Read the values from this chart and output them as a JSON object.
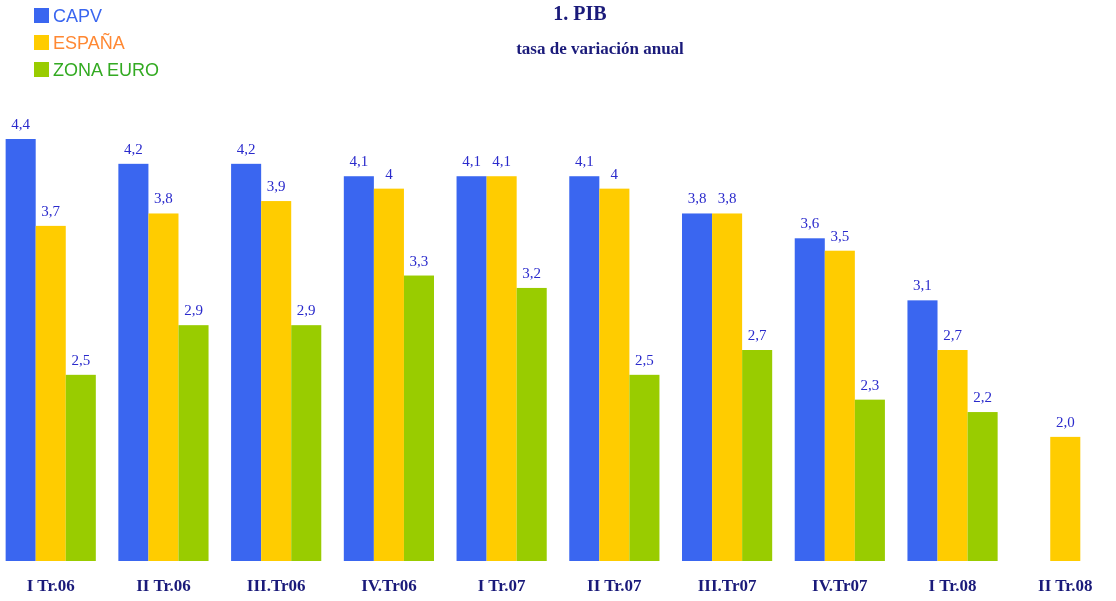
{
  "chart_data": {
    "type": "bar",
    "title": "1. PIB",
    "subtitle": "tasa de variación anual",
    "categories": [
      "I Tr.06",
      "II Tr.06",
      "III.Tr06",
      "IV.Tr06",
      "I Tr.07",
      "II Tr.07",
      "III.Tr07",
      "IV.Tr07",
      "I Tr.08",
      "II Tr.08"
    ],
    "series": [
      {
        "name": "CAPV",
        "color": "#3a66f0",
        "values": [
          4.4,
          4.2,
          4.2,
          4.1,
          4.1,
          4.1,
          3.8,
          3.6,
          3.1,
          null
        ],
        "value_labels": [
          "4,4",
          "4,2",
          "4,2",
          "4,1",
          "4,1",
          "4,1",
          "3,8",
          "3,6",
          "3,1",
          null
        ]
      },
      {
        "name": "ESPAÑA",
        "color": "#ffcc00",
        "values": [
          3.7,
          3.8,
          3.9,
          4,
          4.1,
          4,
          3.8,
          3.5,
          2.7,
          2.0
        ],
        "value_labels": [
          "3,7",
          "3,8",
          "3,9",
          "4",
          "4,1",
          "4",
          "3,8",
          "3,5",
          "2,7",
          "2,0"
        ]
      },
      {
        "name": "ZONA EURO",
        "color": "#99cc00",
        "values": [
          2.5,
          2.9,
          2.9,
          3.3,
          3.2,
          2.5,
          2.7,
          2.3,
          2.2,
          null
        ],
        "value_labels": [
          "2,5",
          "2,9",
          "2,9",
          "3,3",
          "3,2",
          "2,5",
          "2,7",
          "2,3",
          "2,2",
          null
        ]
      }
    ],
    "ylim": [
      1,
      4.4
    ],
    "legend": "top left"
  }
}
